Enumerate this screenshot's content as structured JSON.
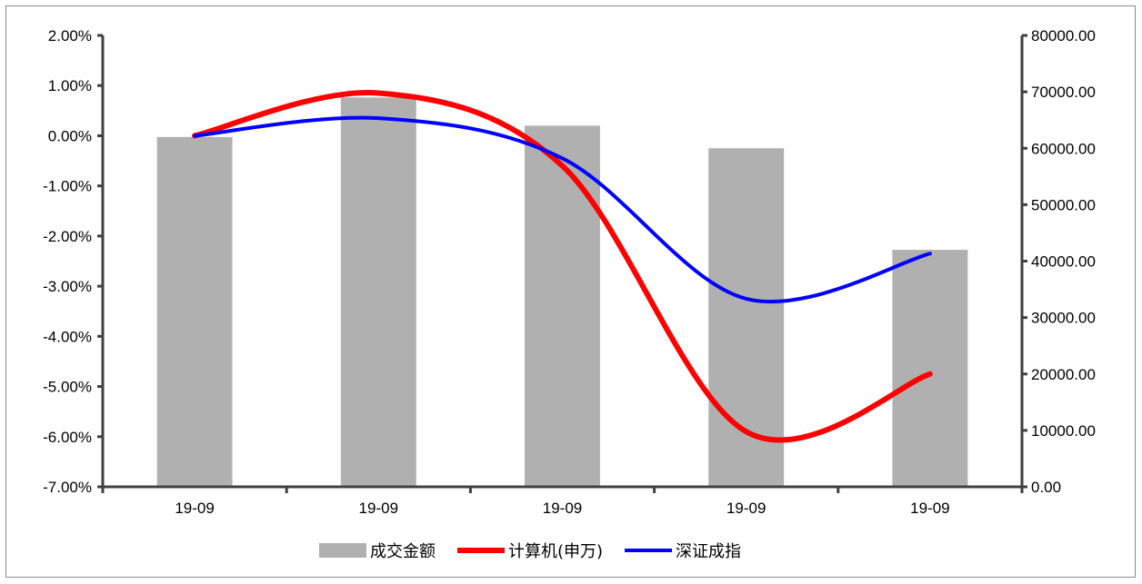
{
  "chart_data": {
    "type": "bar+line",
    "categories": [
      "19-09",
      "19-09",
      "19-09",
      "19-09",
      "19-09"
    ],
    "series": [
      {
        "name": "成交金额",
        "type": "bar",
        "axis": "right",
        "color": "#b0b0b0",
        "values": [
          62000,
          69000,
          64000,
          60000,
          42000
        ]
      },
      {
        "name": "计算机(申万)",
        "type": "line",
        "axis": "left",
        "color": "#ff0000",
        "values": [
          0.0,
          0.85,
          -0.6,
          -5.9,
          -4.75
        ]
      },
      {
        "name": "深证成指",
        "type": "line",
        "axis": "left",
        "color": "#0000ff",
        "values": [
          0.0,
          0.35,
          -0.45,
          -3.25,
          -2.35
        ]
      }
    ],
    "left_axis": {
      "min": -7,
      "max": 2,
      "step": 1,
      "tick_labels": [
        "-7.00%",
        "-6.00%",
        "-5.00%",
        "-4.00%",
        "-3.00%",
        "-2.00%",
        "-1.00%",
        "0.00%",
        "1.00%",
        "2.00%"
      ]
    },
    "right_axis": {
      "min": 0,
      "max": 80000,
      "step": 10000,
      "tick_labels": [
        "0.00",
        "10000.00",
        "20000.00",
        "30000.00",
        "40000.00",
        "50000.00",
        "60000.00",
        "70000.00",
        "80000.00"
      ]
    },
    "grid": false,
    "legend_position": "bottom"
  }
}
